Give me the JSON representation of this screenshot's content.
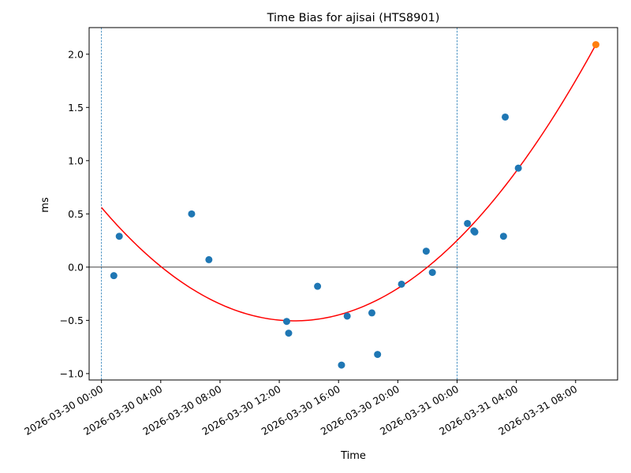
{
  "chart_data": {
    "type": "scatter",
    "title": "Time Bias for ajisai (HTS8901)",
    "xlabel": "Time",
    "ylabel": "ms",
    "xlim": [
      "2026-03-29 23:10",
      "2026-03-31 10:50"
    ],
    "ylim": [
      -1.06,
      2.25
    ],
    "x_ticks": [
      "2026-03-30 00:00",
      "2026-03-30 04:00",
      "2026-03-30 08:00",
      "2026-03-30 12:00",
      "2026-03-30 16:00",
      "2026-03-30 20:00",
      "2026-03-31 00:00",
      "2026-03-31 04:00",
      "2026-03-31 08:00"
    ],
    "y_ticks": [
      -1.0,
      -0.5,
      0.0,
      0.5,
      1.0,
      1.5,
      2.0
    ],
    "y_tick_labels": [
      "−1.0",
      "−0.5",
      "0.0",
      "0.5",
      "1.0",
      "1.5",
      "2.0"
    ],
    "vertical_lines": [
      "2026-03-30 00:00",
      "2026-03-31 00:00"
    ],
    "horizontal_line": 0,
    "points": [
      {
        "x": "2026-03-30 00:50",
        "y": -0.08
      },
      {
        "x": "2026-03-30 01:12",
        "y": 0.29
      },
      {
        "x": "2026-03-30 06:05",
        "y": 0.5
      },
      {
        "x": "2026-03-30 07:15",
        "y": 0.07
      },
      {
        "x": "2026-03-30 12:30",
        "y": -0.51
      },
      {
        "x": "2026-03-30 12:38",
        "y": -0.62
      },
      {
        "x": "2026-03-30 14:35",
        "y": -0.18
      },
      {
        "x": "2026-03-30 16:12",
        "y": -0.92
      },
      {
        "x": "2026-03-30 16:35",
        "y": -0.46
      },
      {
        "x": "2026-03-30 18:15",
        "y": -0.43
      },
      {
        "x": "2026-03-30 18:38",
        "y": -0.82
      },
      {
        "x": "2026-03-30 20:15",
        "y": -0.16
      },
      {
        "x": "2026-03-30 21:55",
        "y": 0.15
      },
      {
        "x": "2026-03-30 22:20",
        "y": -0.05
      },
      {
        "x": "2026-03-31 00:42",
        "y": 0.41
      },
      {
        "x": "2026-03-31 01:08",
        "y": 0.34
      },
      {
        "x": "2026-03-31 01:12",
        "y": 0.33
      },
      {
        "x": "2026-03-31 03:08",
        "y": 0.29
      },
      {
        "x": "2026-03-31 03:15",
        "y": 1.41
      },
      {
        "x": "2026-03-31 04:08",
        "y": 0.93
      }
    ],
    "highlight_point": {
      "x": "2026-03-31 09:22",
      "y": 2.09
    },
    "fit": {
      "type": "quadratic",
      "x_start": "2026-03-30 00:00",
      "x_end": "2026-03-31 09:22",
      "vertex_x": "2026-03-30 13:10",
      "vertex_y": -0.51,
      "y_start": 0.56,
      "y_end": 2.09
    },
    "colors": {
      "points": "#1f77b4",
      "highlight": "#ff7f0e",
      "fit": "#ff0000",
      "vlines": "#1f77b4",
      "hline": "#000000",
      "axes": "#000000"
    }
  }
}
